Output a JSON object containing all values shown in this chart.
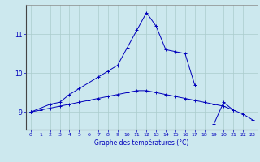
{
  "xlabel": "Graphe des températures (°C)",
  "bg_color": "#cce8ee",
  "grid_color": "#aacccc",
  "line_color": "#0000bb",
  "x": [
    0,
    1,
    2,
    3,
    4,
    5,
    6,
    7,
    8,
    9,
    10,
    11,
    12,
    13,
    14,
    15,
    16,
    17,
    18,
    19,
    20,
    21,
    22,
    23
  ],
  "line1": [
    9.0,
    9.1,
    9.2,
    9.25,
    9.45,
    9.6,
    9.75,
    9.9,
    10.05,
    10.2,
    10.65,
    11.1,
    11.55,
    11.2,
    10.6,
    10.55,
    10.5,
    9.7,
    null,
    null,
    null,
    null,
    null,
    null
  ],
  "line2": [
    9.0,
    9.05,
    9.1,
    9.15,
    9.2,
    9.25,
    9.3,
    9.35,
    9.4,
    9.45,
    9.5,
    9.55,
    9.55,
    9.5,
    9.45,
    9.4,
    9.35,
    9.3,
    9.25,
    9.2,
    9.15,
    9.05,
    8.95,
    8.8
  ],
  "line3": [
    9.0,
    null,
    null,
    null,
    null,
    null,
    null,
    null,
    null,
    null,
    null,
    null,
    null,
    null,
    null,
    null,
    null,
    null,
    null,
    8.7,
    9.25,
    9.05,
    null,
    8.75
  ],
  "ylim": [
    8.55,
    11.75
  ],
  "yticks": [
    9,
    10,
    11
  ],
  "xticks": [
    0,
    1,
    2,
    3,
    4,
    5,
    6,
    7,
    8,
    9,
    10,
    11,
    12,
    13,
    14,
    15,
    16,
    17,
    18,
    19,
    20,
    21,
    22,
    23
  ]
}
